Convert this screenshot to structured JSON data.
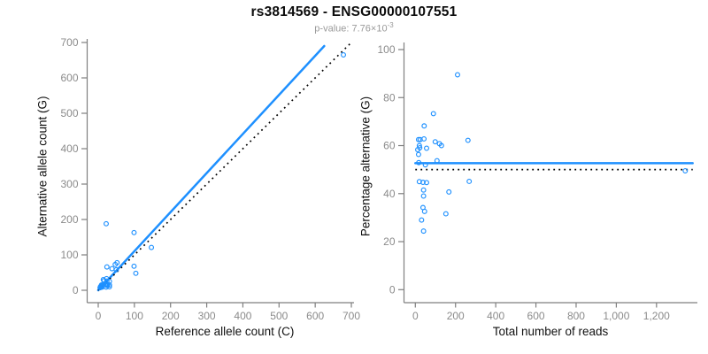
{
  "header": {
    "title": "rs3814569 - ENSG00000107551",
    "p_text": "p-value: 7.76×10",
    "p_exponent": "-3"
  },
  "colors": {
    "accent_blue": "#1E90FF",
    "identity_black": "#000000",
    "axis_gray": "#7f7f7f",
    "tick_label_gray": "#8b8b8b"
  },
  "chart_data": [
    {
      "id": "allele-count-scatter",
      "type": "scatter",
      "xlabel": "Reference allele count (C)",
      "ylabel": "Alternative allele count (G)",
      "xlim": [
        0,
        710
      ],
      "ylim": [
        0,
        710
      ],
      "grid": false,
      "xticks": [
        0,
        100,
        200,
        300,
        400,
        500,
        600,
        700
      ],
      "xtick_labels": [
        "0",
        "100",
        "200",
        "300",
        "400",
        "500",
        "600",
        "700"
      ],
      "yticks": [
        0,
        100,
        200,
        300,
        400,
        500,
        600,
        700
      ],
      "ytick_labels": [
        "0",
        "100",
        "200",
        "300",
        "400",
        "500",
        "600",
        "700"
      ],
      "points": [
        [
          22,
          188
        ],
        [
          24,
          66
        ],
        [
          14,
          30
        ],
        [
          9,
          15
        ],
        [
          16,
          27
        ],
        [
          6,
          10
        ],
        [
          8,
          12
        ],
        [
          5,
          7
        ],
        [
          23,
          33
        ],
        [
          38,
          61
        ],
        [
          47,
          73
        ],
        [
          52,
          78
        ],
        [
          99,
          163
        ],
        [
          9,
          13
        ],
        [
          7,
          9
        ],
        [
          50,
          58
        ],
        [
          8,
          9
        ],
        [
          24,
          26
        ],
        [
          11,
          9
        ],
        [
          21,
          17
        ],
        [
          31,
          25
        ],
        [
          24,
          17
        ],
        [
          25,
          16
        ],
        [
          99,
          68
        ],
        [
          147,
          121
        ],
        [
          25,
          13
        ],
        [
          31,
          15
        ],
        [
          22,
          9
        ],
        [
          104,
          48
        ],
        [
          31,
          10
        ],
        [
          678,
          665
        ]
      ],
      "lines": [
        {
          "name": "fit-line",
          "style": "solid",
          "x1": 0,
          "y1": 0,
          "x2": 625,
          "y2": 690
        },
        {
          "name": "identity-line",
          "style": "dotted",
          "x1": 0,
          "y1": 0,
          "x2": 700,
          "y2": 700
        }
      ]
    },
    {
      "id": "percentage-alternative-scatter",
      "type": "scatter",
      "xlabel": "Total number of reads",
      "ylabel": "Percentage alternative (G)",
      "xlim": [
        0,
        1390
      ],
      "ylim": [
        0,
        100
      ],
      "grid": false,
      "xticks": [
        0,
        200,
        400,
        600,
        800,
        1000,
        1200
      ],
      "xtick_labels": [
        "0",
        "200",
        "400",
        "600",
        "800",
        "1,000",
        "1,200"
      ],
      "yticks": [
        0,
        20,
        40,
        60,
        80,
        100
      ],
      "ytick_labels": [
        "0",
        "20",
        "40",
        "60",
        "80",
        "100"
      ],
      "points": [
        [
          210,
          89.5
        ],
        [
          90,
          73.3
        ],
        [
          44,
          68.2
        ],
        [
          24,
          62.5
        ],
        [
          43,
          62.8
        ],
        [
          16,
          62.5
        ],
        [
          20,
          60.0
        ],
        [
          12,
          58.3
        ],
        [
          56,
          58.9
        ],
        [
          99,
          61.6
        ],
        [
          120,
          60.8
        ],
        [
          130,
          60.0
        ],
        [
          262,
          62.2
        ],
        [
          22,
          59.1
        ],
        [
          16,
          56.3
        ],
        [
          108,
          53.7
        ],
        [
          17,
          52.9
        ],
        [
          50,
          52.0
        ],
        [
          20,
          45.0
        ],
        [
          38,
          44.7
        ],
        [
          56,
          44.6
        ],
        [
          41,
          41.5
        ],
        [
          41,
          39.0
        ],
        [
          167,
          40.7
        ],
        [
          268,
          45.1
        ],
        [
          38,
          34.2
        ],
        [
          46,
          32.6
        ],
        [
          31,
          29.0
        ],
        [
          152,
          31.6
        ],
        [
          41,
          24.4
        ],
        [
          1343,
          49.5
        ]
      ],
      "lines": [
        {
          "name": "mean-percentage-line",
          "style": "solid",
          "x1": 0,
          "y1": 52.7,
          "x2": 1380,
          "y2": 52.7
        },
        {
          "name": "fifty-percent-line",
          "style": "dotted",
          "x1": 0,
          "y1": 50,
          "x2": 1380,
          "y2": 50
        }
      ]
    }
  ]
}
